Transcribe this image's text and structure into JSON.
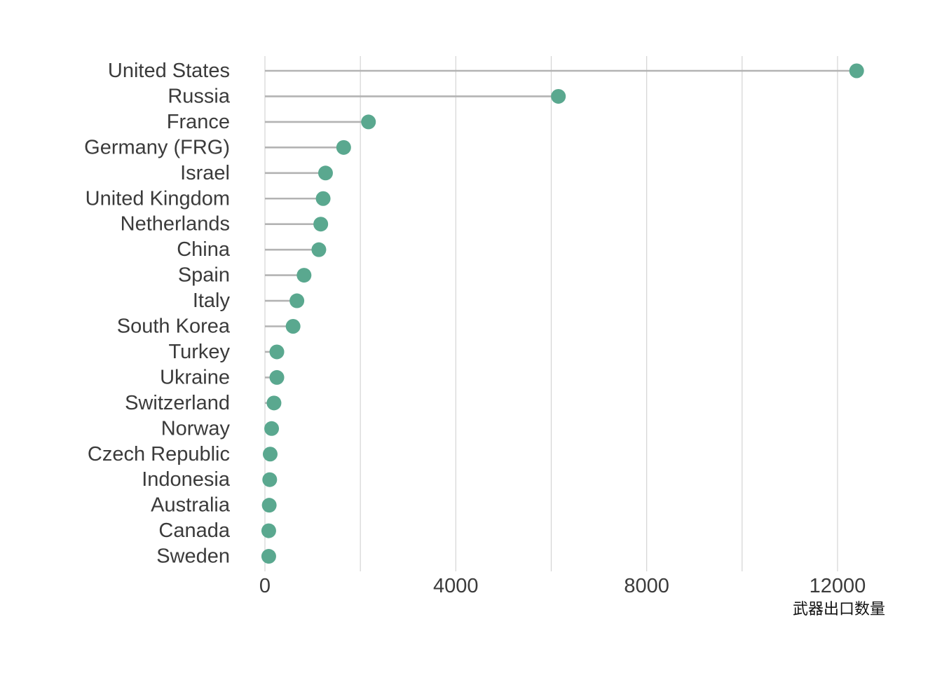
{
  "chart_data": {
    "type": "lollipop",
    "orientation": "horizontal",
    "title": "",
    "xlabel": "武器出口数量",
    "ylabel": "",
    "xlim": [
      0,
      12700
    ],
    "xticks": [
      0,
      4000,
      8000,
      12000
    ],
    "grid": {
      "vertical": true,
      "minor_vertical": true,
      "horizontal": false
    },
    "colors": {
      "point": "#5aa88f",
      "stem": "#b3b3b3",
      "grid": "#d4d4d4",
      "text": "#3b3b3b"
    },
    "categories": [
      "United States",
      "Russia",
      "France",
      "Germany (FRG)",
      "Israel",
      "United Kingdom",
      "Netherlands",
      "China",
      "Spain",
      "Italy",
      "South Korea",
      "Turkey",
      "Ukraine",
      "Switzerland",
      "Norway",
      "Czech Republic",
      "Indonesia",
      "Australia",
      "Canada",
      "Sweden"
    ],
    "values": [
      12400,
      6150,
      2170,
      1650,
      1270,
      1220,
      1170,
      1130,
      820,
      670,
      590,
      250,
      250,
      190,
      140,
      110,
      100,
      90,
      80,
      80
    ]
  }
}
